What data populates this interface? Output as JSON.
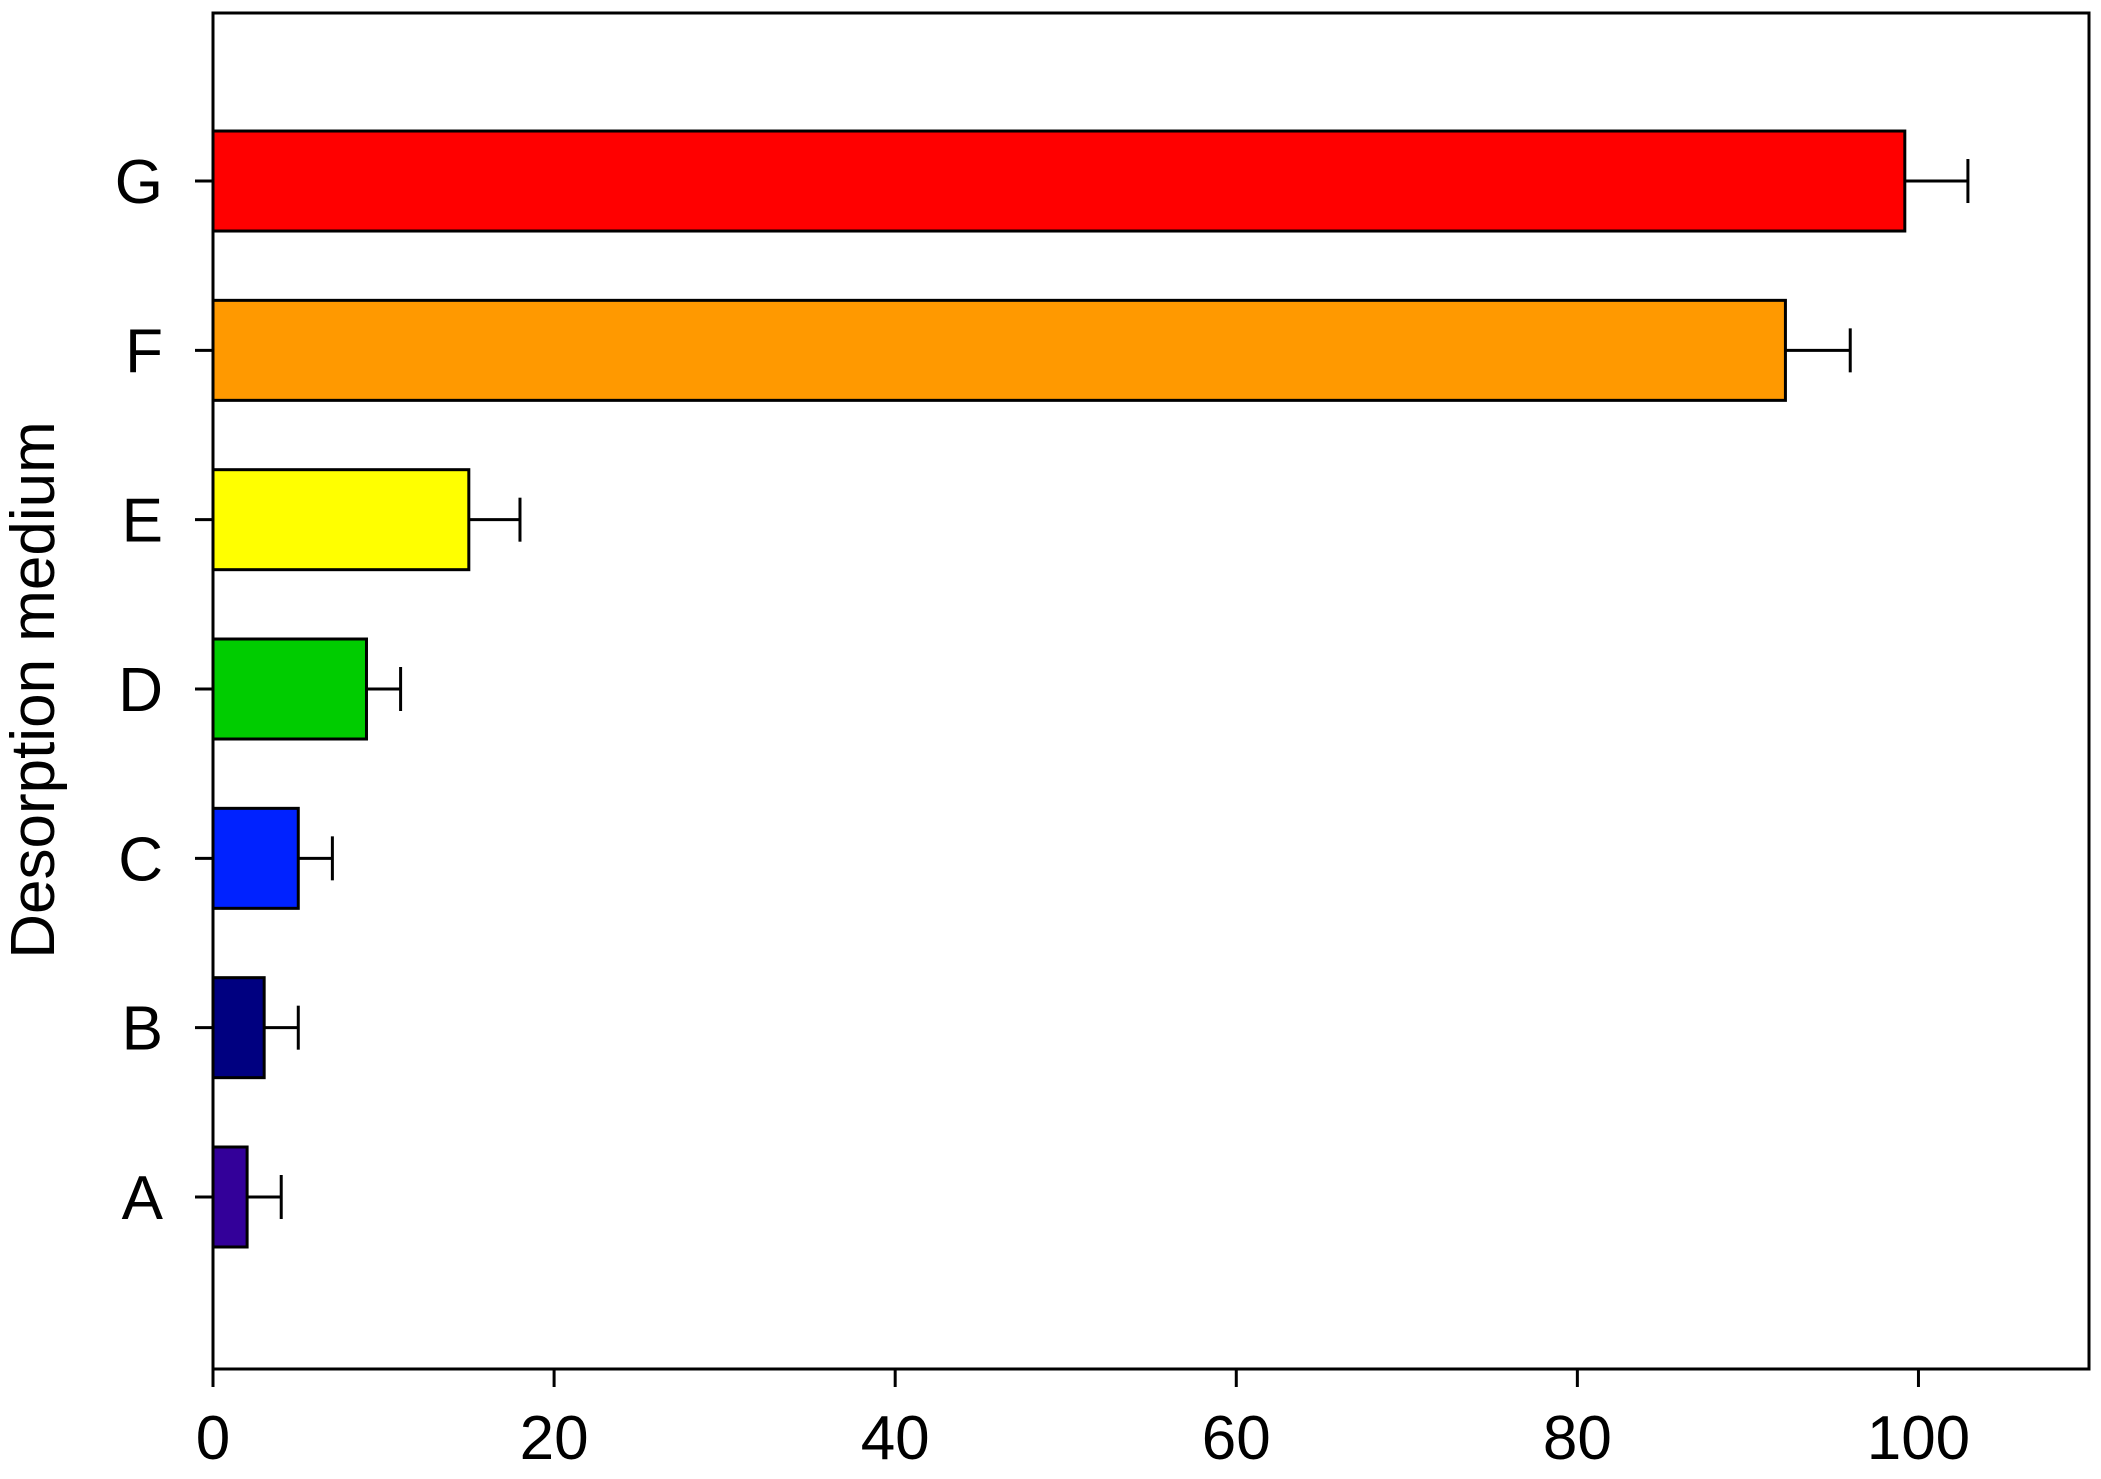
{
  "chart_data": {
    "type": "bar",
    "orientation": "horizontal",
    "title": "",
    "xlabel": "",
    "ylabel": "Desorption medium",
    "categories": [
      "A",
      "B",
      "C",
      "D",
      "E",
      "F",
      "G"
    ],
    "values": [
      2,
      3,
      5,
      9,
      15,
      92.2,
      99.2
    ],
    "errors": [
      2,
      2,
      2,
      2,
      3,
      3.8,
      3.7
    ],
    "colors": [
      "#330099",
      "#000080",
      "#0022ff",
      "#00cc00",
      "#ffff00",
      "#ff9900",
      "#ff0000"
    ],
    "xlim": [
      0,
      110
    ],
    "xticks": [
      0,
      20,
      40,
      60,
      80,
      100
    ],
    "grid": false,
    "legend": "none"
  }
}
